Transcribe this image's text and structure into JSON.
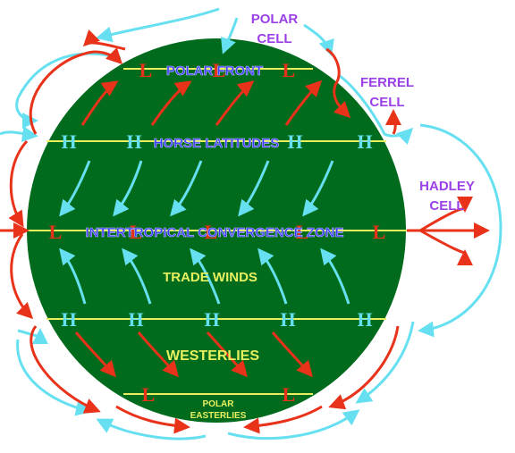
{
  "colors": {
    "globe": "#006b1c",
    "lat_line": "#e8f060",
    "warm_arrow": "#e8321a",
    "cold_arrow": "#66e0f0",
    "cell_label": "#9b40e8",
    "zone_label": "#3a3aff",
    "wind_label": "#e8f060",
    "high_symbol": "#66e0f0",
    "low_symbol": "#e8321a"
  },
  "labels": {
    "polar_cell": [
      "POLAR",
      "CELL"
    ],
    "ferrel_cell": [
      "FERREL",
      "CELL"
    ],
    "hadley_cell": [
      "HADLEY",
      "CELL"
    ],
    "polar_front": "POLAR FRONT",
    "horse_latitudes": "HORSE LATITUDES",
    "itcz": "INTERTROPICAL CONVERGENCE ZONE",
    "trade_winds": "TRADE WINDS",
    "westerlies": "WESTERLIES",
    "polar_easterlies": [
      "POLAR",
      "EASTERLIES"
    ]
  },
  "symbols": {
    "high": "H",
    "low": "L"
  }
}
